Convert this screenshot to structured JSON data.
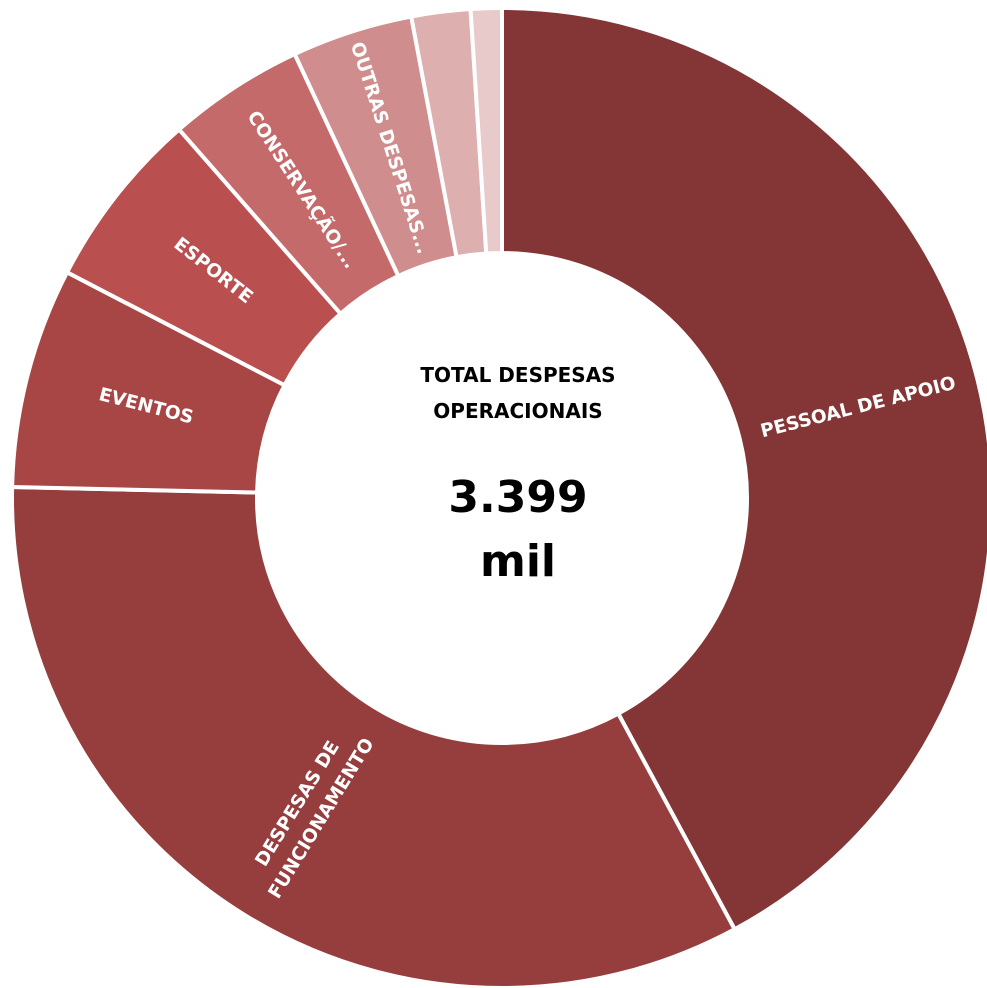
{
  "chart_data": {
    "type": "pie",
    "variant": "donut",
    "slices": [
      {
        "label": "PESSOAL DE APOIO",
        "value": 41.2,
        "color": "#843535"
      },
      {
        "label": "DESPESAS DE FUNCIONAMENTO",
        "value": 32.5,
        "color": "#963E3E"
      },
      {
        "label": "EVENTOS",
        "value": 7.1,
        "color": "#A84646"
      },
      {
        "label": "ESPORTE",
        "value": 5.8,
        "color": "#BA4F4F"
      },
      {
        "label": "CONSERVAÇÃO/...",
        "value": 4.4,
        "color": "#C56A6A"
      },
      {
        "label": "OUTRAS DESPESAS...",
        "value": 3.9,
        "color": "#D08D8D"
      },
      {
        "label": "",
        "value": 1.9,
        "color": "#DDAFAF"
      },
      {
        "label": "",
        "value": 1.0,
        "color": "#E8CACA"
      }
    ],
    "center": {
      "title_line1": "TOTAL DESPESAS",
      "title_line2": "OPERACIONAIS",
      "value_line1": "3.399",
      "value_line2": "mil"
    },
    "legend": "none"
  }
}
